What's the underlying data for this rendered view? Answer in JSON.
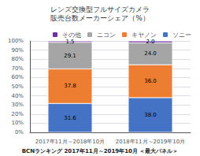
{
  "chart_data": {
    "type": "bar",
    "title": "レンズ交換型フルサイズカメラ",
    "subtitle": "販売台数メーカーシェア（%）",
    "categories": [
      "2017年11月～2018年10月",
      "2018年11月～2019年10月"
    ],
    "series": [
      {
        "name": "ソニー",
        "color": "#4472c4",
        "values": [
          31.6,
          38.0
        ],
        "value_labels": [
          "31.6",
          "38.0"
        ]
      },
      {
        "name": "キヤノン",
        "color": "#ed7d31",
        "values": [
          37.8,
          36.0
        ],
        "value_labels": [
          "37.8",
          "36.0"
        ]
      },
      {
        "name": "ニコン",
        "color": "#a5a5a5",
        "values": [
          29.1,
          24.0
        ],
        "value_labels": [
          "29.1",
          "24.0"
        ]
      },
      {
        "name": "その他",
        "color": "#7030a0",
        "values": [
          1.5,
          2.0
        ],
        "value_labels": [
          "1.5",
          "2.0"
        ]
      }
    ],
    "stacked": true,
    "data_labels": true,
    "ylim": [
      0,
      100
    ],
    "yticks": [
      {
        "value": 0,
        "label": "0%"
      },
      {
        "value": 10,
        "label": "10%"
      },
      {
        "value": 20,
        "label": "20%"
      },
      {
        "value": 30,
        "label": "30%"
      },
      {
        "value": 40,
        "label": "40%"
      },
      {
        "value": 50,
        "label": "50%"
      },
      {
        "value": 60,
        "label": "60%"
      },
      {
        "value": 70,
        "label": "70%"
      },
      {
        "value": 80,
        "label": "80%"
      },
      {
        "value": 90,
        "label": "90%"
      },
      {
        "value": 100,
        "label": "100%"
      }
    ],
    "grid": true,
    "legend": "upper right",
    "annotations": [
      "BCNランキング 2017年11月～2019年10月 ＜最大パネル＞"
    ]
  }
}
